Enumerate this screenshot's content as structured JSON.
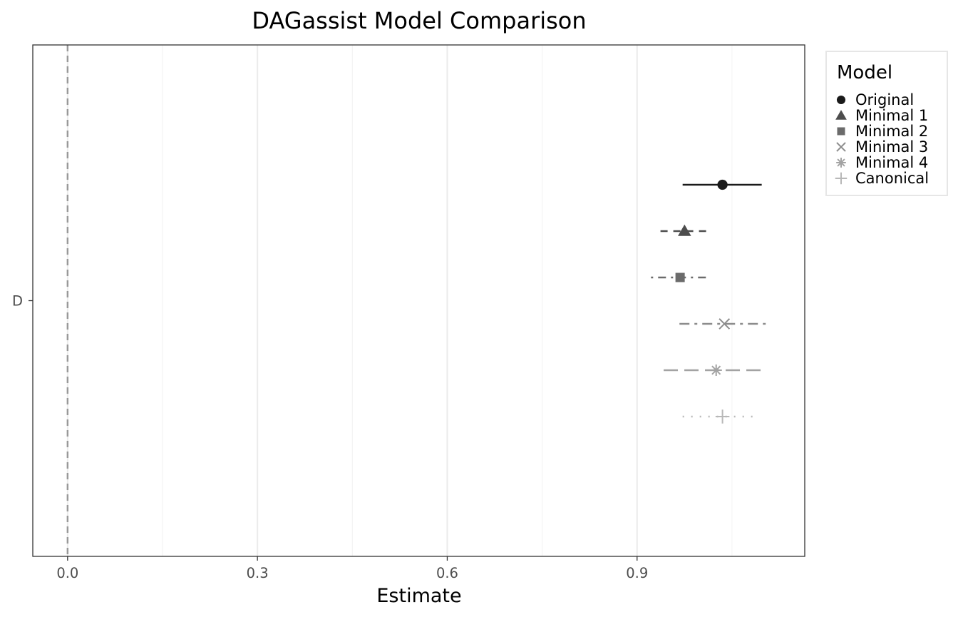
{
  "chart_data": {
    "type": "forest",
    "title": "DAGassist Model Comparison",
    "xlabel": "Estimate",
    "ylabel": "",
    "xlim": [
      -0.055,
      1.165
    ],
    "x_ticks": [
      0.0,
      0.3,
      0.6,
      0.9
    ],
    "x_tick_labels": [
      "0.0",
      "0.3",
      "0.6",
      "0.9"
    ],
    "y_categories": [
      "D"
    ],
    "reference_line": 0,
    "grid": true,
    "legend": {
      "title": "Model",
      "position": "right"
    },
    "series": [
      {
        "name": "Original",
        "estimate": 1.035,
        "lower": 0.972,
        "upper": 1.097,
        "shape": "circle",
        "linetype": "solid",
        "color": "#1a1a1a"
      },
      {
        "name": "Minimal 1",
        "estimate": 0.975,
        "lower": 0.937,
        "upper": 1.015,
        "shape": "triangle",
        "linetype": "dashed",
        "color": "#4d4d4d"
      },
      {
        "name": "Minimal 2",
        "estimate": 0.968,
        "lower": 0.922,
        "upper": 1.013,
        "shape": "square",
        "linetype": "dotdash",
        "color": "#6b6b6b"
      },
      {
        "name": "Minimal 3",
        "estimate": 1.038,
        "lower": 0.967,
        "upper": 1.11,
        "shape": "cross",
        "linetype": "dashdot",
        "color": "#8c8c8c"
      },
      {
        "name": "Minimal 4",
        "estimate": 1.025,
        "lower": 0.942,
        "upper": 1.104,
        "shape": "asterisk",
        "linetype": "longdash",
        "color": "#a3a3a3"
      },
      {
        "name": "Canonical",
        "estimate": 1.035,
        "lower": 0.972,
        "upper": 1.092,
        "shape": "plus",
        "linetype": "dotted",
        "color": "#b8b8b8"
      }
    ]
  }
}
